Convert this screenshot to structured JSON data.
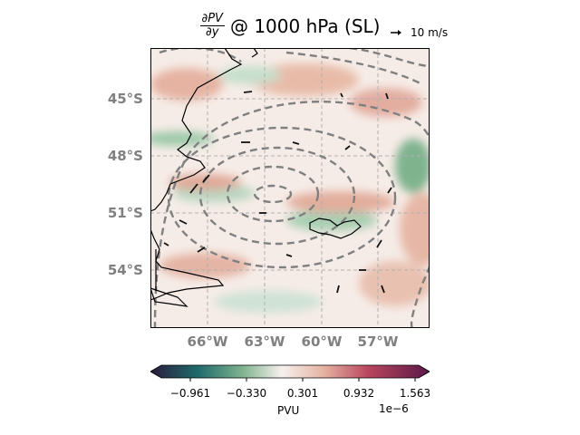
{
  "title": {
    "fraction_numerator": "∂PV",
    "fraction_denominator": "∂y",
    "text": "@ 1000 hPa (SL)"
  },
  "quiver_key": {
    "label": "10 m/s",
    "reference_speed": 10
  },
  "map": {
    "lat_labels": [
      "45°S",
      "48°S",
      "51°S",
      "54°S"
    ],
    "lon_labels": [
      "66°W",
      "63°W",
      "60°W",
      "57°W"
    ],
    "lat_range": [
      -57.5,
      -42.5
    ],
    "lon_range": [
      -69,
      -54
    ],
    "gridlines": true
  },
  "colorbar": {
    "ticks": [
      "−0.961",
      "−0.330",
      "0.301",
      "0.932",
      "1.563"
    ],
    "unit": "PVU",
    "multiplier": "1e−6",
    "colors": [
      "#2a1a3c",
      "#1f6b6b",
      "#7fb38e",
      "#f7f1ee",
      "#d98a74",
      "#a83a5c",
      "#5a1848"
    ]
  },
  "colors": {
    "contour": "#808080",
    "grid": "#b0b0b0",
    "coast": "#000000"
  }
}
